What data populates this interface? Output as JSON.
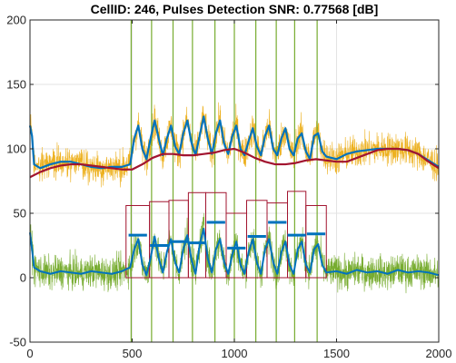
{
  "chart_data": {
    "type": "line",
    "title": "CellID: 246, Pulses Detection  SNR: 0.77568 [dB]",
    "xlim": [
      0,
      2000
    ],
    "ylim": [
      -50,
      200
    ],
    "x_ticks": [
      0,
      500,
      1000,
      1500,
      2000
    ],
    "y_ticks": [
      -50,
      0,
      50,
      100,
      150,
      200
    ],
    "grid": true,
    "colors": {
      "upper_raw": "#EDB120",
      "lower_raw": "#77AC30",
      "envelope": "#0072BD",
      "baseline": "#A2142F",
      "pulse_box": "#A2142F",
      "detection_line": "#77AC30",
      "grid": "#e3e3e3"
    },
    "series": [
      {
        "key": "upper_envelope",
        "x": [
          0,
          10,
          20,
          50,
          100,
          150,
          200,
          250,
          300,
          350,
          400,
          450,
          490,
          510,
          530,
          550,
          570,
          590,
          610,
          630,
          650,
          670,
          690,
          710,
          730,
          750,
          770,
          790,
          810,
          830,
          850,
          870,
          890,
          910,
          930,
          950,
          970,
          990,
          1010,
          1030,
          1050,
          1070,
          1090,
          1110,
          1130,
          1150,
          1170,
          1190,
          1210,
          1230,
          1250,
          1270,
          1290,
          1310,
          1330,
          1350,
          1370,
          1390,
          1410,
          1430,
          1450,
          1500,
          1550,
          1600,
          1650,
          1700,
          1750,
          1800,
          1850,
          1900,
          1950,
          2000
        ],
        "y": [
          118,
          110,
          88,
          85,
          88,
          90,
          90,
          88,
          86,
          85,
          86,
          86,
          88,
          108,
          118,
          100,
          92,
          108,
          122,
          108,
          95,
          108,
          118,
          102,
          96,
          112,
          122,
          105,
          95,
          110,
          125,
          108,
          96,
          112,
          122,
          104,
          96,
          110,
          118,
          100,
          95,
          106,
          116,
          102,
          95,
          110,
          118,
          100,
          95,
          108,
          116,
          100,
          95,
          108,
          112,
          98,
          92,
          110,
          112,
          98,
          94,
          92,
          96,
          98,
          99,
          100,
          100,
          100,
          99,
          96,
          91,
          86
        ]
      },
      {
        "key": "upper_baseline",
        "x": [
          0,
          50,
          100,
          150,
          200,
          250,
          300,
          350,
          400,
          450,
          500,
          550,
          600,
          650,
          700,
          750,
          800,
          850,
          900,
          950,
          1000,
          1050,
          1100,
          1150,
          1200,
          1250,
          1300,
          1350,
          1400,
          1450,
          1500,
          1550,
          1600,
          1650,
          1700,
          1750,
          1800,
          1850,
          1900,
          1950,
          2000
        ],
        "y": [
          78,
          82,
          85,
          87,
          88,
          88,
          87,
          86,
          85,
          84,
          84,
          88,
          93,
          96,
          96,
          95,
          95,
          96,
          97,
          99,
          100,
          97,
          93,
          90,
          88,
          88,
          89,
          91,
          92,
          91,
          90,
          90,
          93,
          96,
          99,
          100,
          100,
          99,
          96,
          90,
          85
        ]
      },
      {
        "key": "lower_envelope",
        "x": [
          0,
          10,
          20,
          50,
          100,
          150,
          200,
          250,
          300,
          350,
          400,
          450,
          490,
          510,
          530,
          550,
          570,
          590,
          610,
          630,
          650,
          670,
          690,
          710,
          730,
          750,
          770,
          790,
          810,
          830,
          850,
          870,
          890,
          910,
          930,
          950,
          970,
          990,
          1010,
          1030,
          1050,
          1070,
          1090,
          1110,
          1130,
          1150,
          1170,
          1190,
          1210,
          1230,
          1250,
          1270,
          1290,
          1310,
          1330,
          1350,
          1370,
          1390,
          1410,
          1430,
          1450,
          1500,
          1550,
          1600,
          1650,
          1700,
          1750,
          1800,
          1850,
          1900,
          1950,
          2000
        ],
        "y": [
          35,
          22,
          8,
          5,
          3,
          5,
          4,
          3,
          5,
          4,
          3,
          5,
          8,
          22,
          30,
          10,
          2,
          15,
          32,
          15,
          4,
          20,
          30,
          12,
          4,
          22,
          33,
          14,
          3,
          25,
          38,
          15,
          4,
          22,
          30,
          12,
          3,
          18,
          28,
          10,
          3,
          20,
          30,
          12,
          3,
          22,
          30,
          12,
          3,
          20,
          28,
          10,
          3,
          22,
          28,
          10,
          4,
          22,
          26,
          10,
          4,
          5,
          3,
          6,
          4,
          5,
          3,
          6,
          4,
          5,
          4,
          2
        ]
      }
    ],
    "pulses": [
      {
        "x_start": 470,
        "x_end": 585,
        "level": 33,
        "box_top": 56
      },
      {
        "x_start": 585,
        "x_end": 680,
        "level": 25,
        "box_top": 59
      },
      {
        "x_start": 680,
        "x_end": 775,
        "level": 28,
        "box_top": 60
      },
      {
        "x_start": 775,
        "x_end": 860,
        "level": 27,
        "box_top": 66
      },
      {
        "x_start": 860,
        "x_end": 960,
        "level": 43,
        "box_top": 66
      },
      {
        "x_start": 960,
        "x_end": 1060,
        "level": 23,
        "box_top": 50
      },
      {
        "x_start": 1060,
        "x_end": 1160,
        "level": 32,
        "box_top": 60
      },
      {
        "x_start": 1160,
        "x_end": 1260,
        "level": 43,
        "box_top": 58
      },
      {
        "x_start": 1260,
        "x_end": 1350,
        "level": 33,
        "box_top": 67
      },
      {
        "x_start": 1350,
        "x_end": 1450,
        "level": 34,
        "box_top": 56
      }
    ],
    "detection_lines_x": [
      495,
      595,
      700,
      795,
      905,
      1000,
      1105,
      1205,
      1295,
      1405
    ]
  }
}
